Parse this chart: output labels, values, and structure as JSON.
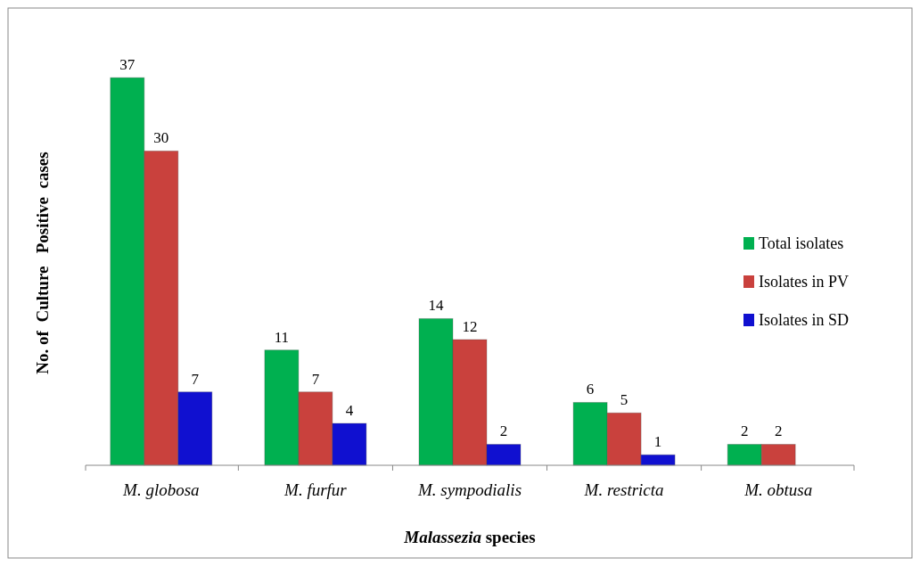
{
  "chart_data": {
    "type": "bar",
    "xlabel": "Malassezia species",
    "ylabel": "No. of  Culture   Positive  cases",
    "categories": [
      "M. globosa",
      "M. furfur",
      "M. sympodialis",
      "M. restricta",
      "M. obtusa"
    ],
    "series": [
      {
        "name": "Total isolates",
        "color": "#00b050",
        "values": [
          37,
          11,
          14,
          6,
          2
        ]
      },
      {
        "name": "Isolates in PV",
        "color": "#c9413d",
        "values": [
          30,
          7,
          12,
          5,
          2
        ]
      },
      {
        "name": "Isolates in SD",
        "color": "#1010d0",
        "values": [
          7,
          4,
          2,
          1,
          null
        ]
      }
    ],
    "data_labels": true,
    "legend": "right"
  }
}
